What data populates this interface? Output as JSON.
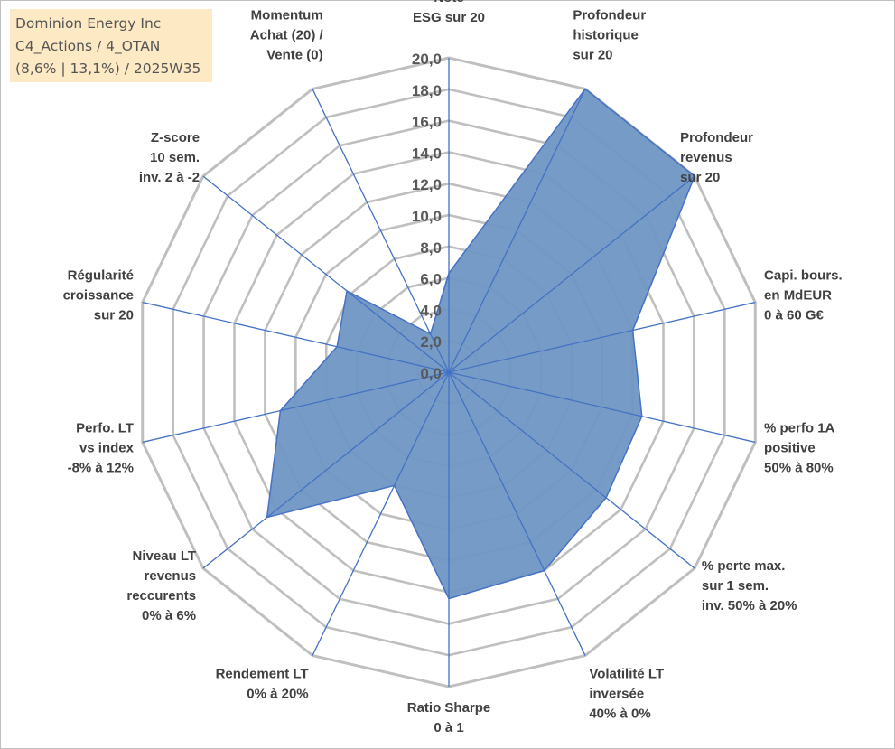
{
  "info": {
    "line1": "Dominion Energy Inc",
    "line2": "C4_Actions / 4_OTAN",
    "line3": "(8,6% | 13,1%) / 2025W35"
  },
  "colors": {
    "fill": "#6f96c4",
    "stroke": "#4472c4",
    "grid": "#bfbfbf",
    "spoke": "#4472c4"
  },
  "chart_data": {
    "type": "radar",
    "title": "",
    "rlim": [
      0,
      20
    ],
    "grid": true,
    "tick_labels": [
      "0,0",
      "2,0",
      "4,0",
      "6,0",
      "8,0",
      "10,0",
      "12,0",
      "14,0",
      "16,0",
      "18,0",
      "20,0"
    ],
    "axes": [
      [
        "Note",
        "ESG sur 20"
      ],
      [
        "Profondeur",
        "historique",
        "sur 20"
      ],
      [
        "Profondeur",
        "revenus",
        "sur 20"
      ],
      [
        "Capi. bours.",
        "en MdEUR",
        "0 à 60 G€"
      ],
      [
        "% perfo 1A",
        "positive",
        "50% à 80%"
      ],
      [
        "% perte max.",
        "sur 1 sem.",
        "inv. 50% à 20%"
      ],
      [
        "Volatilité LT",
        "inversée",
        "40% à 0%"
      ],
      [
        "Ratio Sharpe",
        "0 à 1"
      ],
      [
        "Rendement LT",
        "0% à 20%"
      ],
      [
        "Niveau LT",
        "revenus",
        "reccurents",
        "0% à 6%"
      ],
      [
        "Perfo. LT",
        "vs index",
        "-8% à 12%"
      ],
      [
        "Régularité",
        "croissance",
        "sur 20"
      ],
      [
        "Z-score",
        "10 sem.",
        "inv. 2 à -2"
      ],
      [
        "Momentum",
        "Achat (20) /",
        "Vente (0)"
      ]
    ],
    "series": [
      {
        "values": [
          6.3,
          20.0,
          20.0,
          12.0,
          12.6,
          12.8,
          14.0,
          14.4,
          8.0,
          14.8,
          11.0,
          7.3,
          8.3,
          2.7
        ]
      }
    ]
  }
}
